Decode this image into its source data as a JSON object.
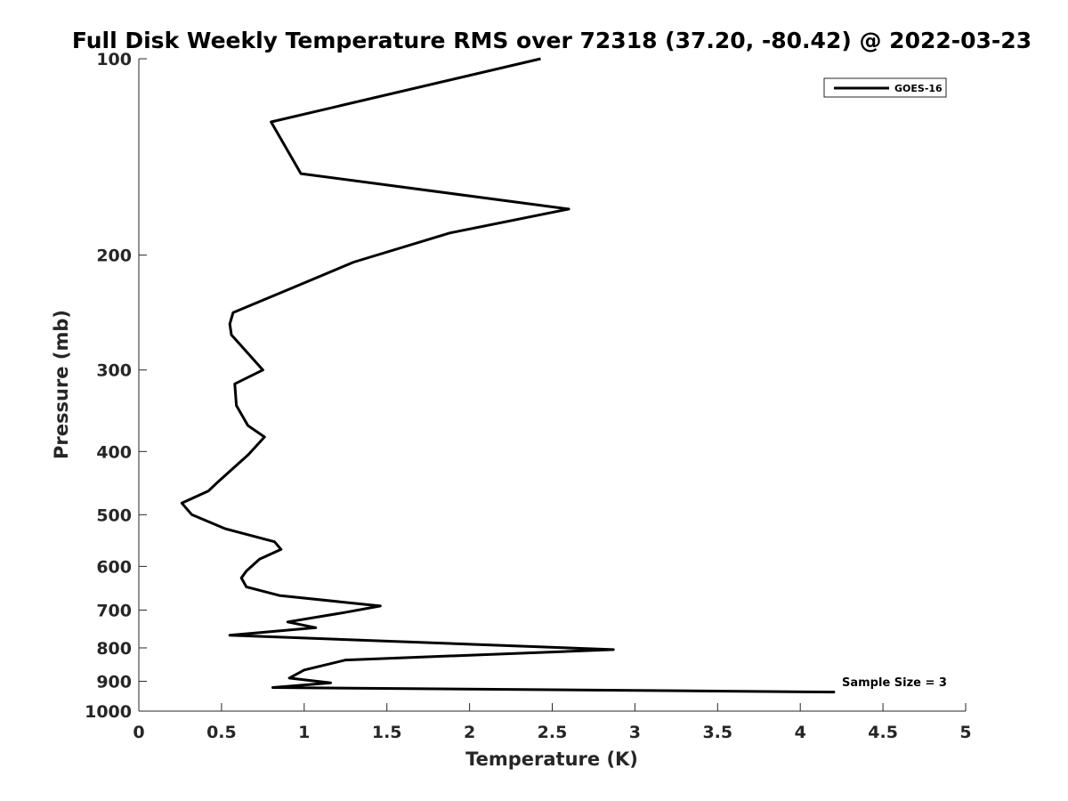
{
  "chart_data": {
    "type": "line",
    "title": "Full Disk Weekly Temperature RMS over 72318 (37.20, -80.42) @ 2022-03-23",
    "xlabel": "Temperature (K)",
    "ylabel": "Pressure (mb)",
    "xlim": [
      0,
      5
    ],
    "ylim": [
      100,
      1000
    ],
    "y_scale": "log",
    "y_reversed": true,
    "x_ticks": [
      0,
      0.5,
      1,
      1.5,
      2,
      2.5,
      3,
      3.5,
      4,
      4.5,
      5
    ],
    "x_tick_labels": [
      "0",
      "0.5",
      "1",
      "1.5",
      "2",
      "2.5",
      "3",
      "3.5",
      "4",
      "4.5",
      "5"
    ],
    "y_ticks": [
      100,
      200,
      300,
      400,
      500,
      600,
      700,
      800,
      900,
      1000
    ],
    "y_tick_labels": [
      "100",
      "200",
      "300",
      "400",
      "500",
      "600",
      "700",
      "800",
      "900",
      "1000"
    ],
    "grid": false,
    "legend_position": "top-right",
    "annotation": "Sample Size = 3",
    "series": [
      {
        "name": "GOES-16",
        "color": "#000000",
        "points": [
          [
            2.43,
            100
          ],
          [
            0.8,
            125
          ],
          [
            0.98,
            150
          ],
          [
            2.6,
            170
          ],
          [
            1.88,
            185
          ],
          [
            1.3,
            205
          ],
          [
            0.92,
            225
          ],
          [
            0.57,
            245
          ],
          [
            0.55,
            255
          ],
          [
            0.56,
            265
          ],
          [
            0.75,
            300
          ],
          [
            0.58,
            315
          ],
          [
            0.59,
            340
          ],
          [
            0.66,
            365
          ],
          [
            0.76,
            380
          ],
          [
            0.66,
            405
          ],
          [
            0.48,
            445
          ],
          [
            0.42,
            460
          ],
          [
            0.26,
            480
          ],
          [
            0.32,
            500
          ],
          [
            0.52,
            525
          ],
          [
            0.82,
            550
          ],
          [
            0.86,
            565
          ],
          [
            0.73,
            585
          ],
          [
            0.65,
            610
          ],
          [
            0.62,
            625
          ],
          [
            0.65,
            645
          ],
          [
            0.85,
            665
          ],
          [
            1.46,
            690
          ],
          [
            1.26,
            705
          ],
          [
            0.9,
            730
          ],
          [
            1.07,
            745
          ],
          [
            0.55,
            765
          ],
          [
            2.02,
            790
          ],
          [
            2.87,
            805
          ],
          [
            1.25,
            835
          ],
          [
            1.0,
            865
          ],
          [
            0.91,
            890
          ],
          [
            1.16,
            905
          ],
          [
            0.81,
            920
          ],
          [
            4.21,
            935
          ]
        ]
      }
    ]
  }
}
